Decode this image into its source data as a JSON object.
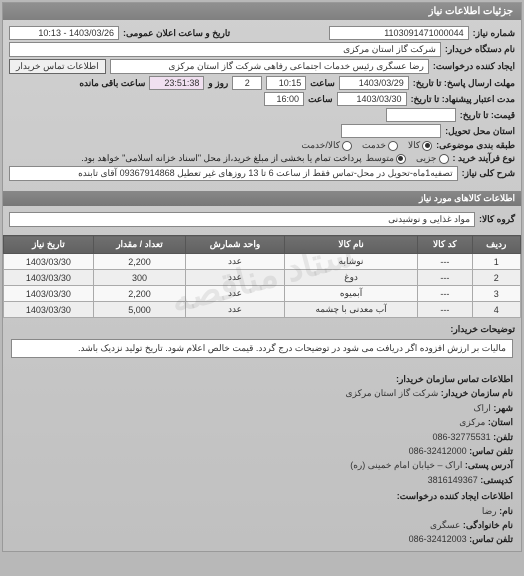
{
  "header": "جزئیات اطلاعات نیاز",
  "fields": {
    "req_no_lbl": "شماره نیاز:",
    "req_no": "1103091471000044",
    "pub_date_lbl": "تاریخ و ساعت اعلان عمومی:",
    "pub_date": "1403/03/26 - 10:13",
    "buyer_lbl": "نام دستگاه خریدار:",
    "buyer": "شرکت گاز استان مرکزی",
    "requester_lbl": "ایجاد کننده درخواست:",
    "requester": "رضا عسگری رئیس خدمات اجتماعی رفاهی شرکت گاز استان مرکزی",
    "contact_btn": "اطلاعات تماس خریدار",
    "deadline_send_lbl": "مهلت ارسال پاسخ: تا تاریخ:",
    "deadline_send_date": "1403/03/29",
    "time_lbl": "ساعت",
    "deadline_send_time": "10:15",
    "remain_lbl": "روز و",
    "remain_days": "2",
    "remain_time": "23:51:38",
    "remain_suffix": "ساعت باقی مانده",
    "valid_lbl": "مدت اعتبار پیشنهاد: تا تاریخ:",
    "valid_date": "1403/03/30",
    "valid_time": "16:00",
    "price_lbl": "قیمت: تا تاریخ:",
    "deliver_loc_lbl": "استان محل تحویل:",
    "class_lbl": "طبقه بندی موضوعی:",
    "class_goods": "کالا",
    "class_service": "خدمت",
    "class_both": "کالا/خدمت",
    "proc_lbl": "نوع فرآیند خرید :",
    "proc_small": "متوسط",
    "proc_partial_note": "پرداخت تمام یا بخشی از مبلغ خرید،از محل \"اسناد خزانه اسلامی\" خواهد بود.",
    "proc_partial": "جزیی",
    "desc_lbl": "شرح کلی نیاز:",
    "desc": "تصفیه1ماه-تحویل در محل-تماس فقط از ساعت 6 تا 13 روزهای غیر تعطیل 09367914868 آقای تابنده"
  },
  "goods_section": "اطلاعات کالاهای مورد نیاز",
  "group_lbl": "گروه کالا:",
  "group_val": "مواد غذایی و نوشیدنی",
  "table": {
    "cols": [
      "ردیف",
      "کد کالا",
      "نام کالا",
      "واحد شمارش",
      "تعداد / مقدار",
      "تاریخ نیاز"
    ],
    "rows": [
      [
        "1",
        "---",
        "نوشابه",
        "عدد",
        "2,200",
        "1403/03/30"
      ],
      [
        "2",
        "---",
        "دوغ",
        "عدد",
        "300",
        "1403/03/30"
      ],
      [
        "3",
        "---",
        "آبمیوه",
        "عدد",
        "2,200",
        "1403/03/30"
      ],
      [
        "4",
        "---",
        "آب معدنی با چشمه",
        "عدد",
        "5,000",
        "1403/03/30"
      ]
    ]
  },
  "buyer_note_lbl": "توضیحات خریدار:",
  "buyer_note": "مالیات بر ارزش افزوده اگر دریافت می شود در توضیحات درج گردد. قیمت خالص اعلام شود. تاریخ تولید نزدیک باشد.",
  "contact": {
    "org_hdr": "اطلاعات تماس سازمان خریدار:",
    "org_name_lbl": "نام سازمان خریدار:",
    "org_name": "شرکت گاز استان مرکزی",
    "city_lbl": "شهر:",
    "city": "اراک",
    "province_lbl": "استان:",
    "province": "مرکزی",
    "tel_lbl": "تلفن:",
    "tel": "32775531-086",
    "fax_lbl": "تلفن تماس:",
    "fax": "32412000-086",
    "addr_lbl": "آدرس پستی:",
    "addr": "اراک – خیابان امام خمینی (ره)",
    "post_lbl": "کدپستی:",
    "post": "3816149367",
    "req_hdr": "اطلاعات ایجاد کننده درخواست:",
    "name_lbl": "نام:",
    "name": "رضا",
    "lname_lbl": "نام خانوادگی:",
    "lname": "عسگری",
    "rtel_lbl": "تلفن تماس:",
    "rtel": "32412003-086"
  },
  "watermark": "ستاد مناقصه"
}
